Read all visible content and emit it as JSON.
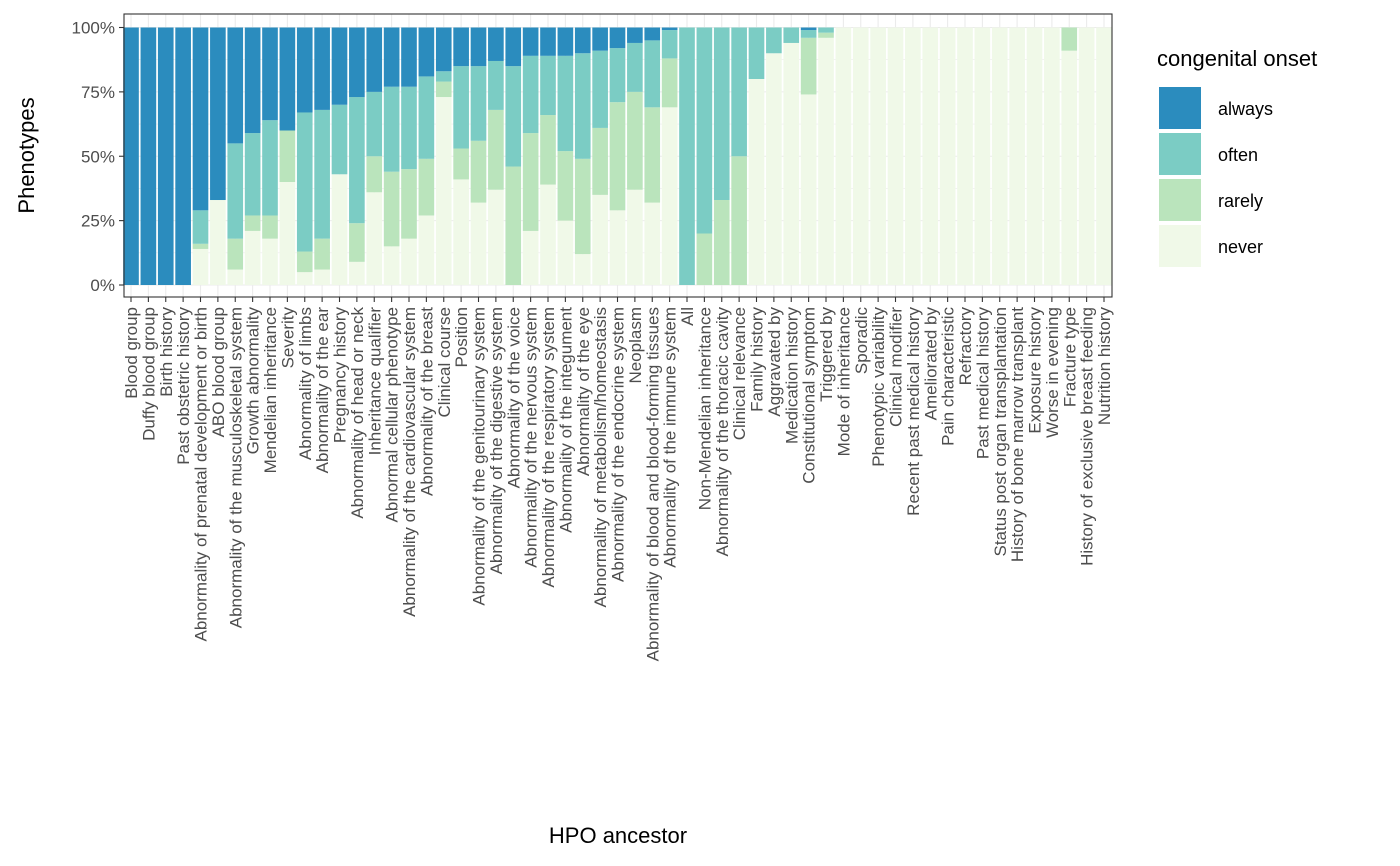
{
  "chart_data": {
    "type": "bar",
    "stacked": true,
    "xlabel": "HPO ancestor",
    "ylabel": "Phenotypes",
    "ylim": [
      0,
      1
    ],
    "y_ticks": [
      0,
      0.25,
      0.5,
      0.75,
      1
    ],
    "y_tick_labels": [
      "0%",
      "25%",
      "50%",
      "75%",
      "100%"
    ],
    "grid": true,
    "legend": {
      "title": "congenital onset",
      "placement": "right"
    },
    "categories": [
      "Blood group",
      "Duffy blood group",
      "Birth history",
      "Past obstetric history",
      "Abnormality of prenatal development or birth",
      "ABO blood group",
      "Abnormality of the musculoskeletal system",
      "Growth abnormality",
      "Mendelian inheritance",
      "Severity",
      "Abnormality of limbs",
      "Abnormality of the ear",
      "Pregnancy history",
      "Abnormality of head or neck",
      "Inheritance qualifier",
      "Abnormal cellular phenotype",
      "Abnormality of the cardiovascular system",
      "Abnormality of the breast",
      "Clinical course",
      "Position",
      "Abnormality of the genitourinary system",
      "Abnormality of the digestive system",
      "Abnormality of the voice",
      "Abnormality of the nervous system",
      "Abnormality of the respiratory system",
      "Abnormality of the integument",
      "Abnormality of the eye",
      "Abnormality of metabolism/homeostasis",
      "Abnormality of the endocrine system",
      "Neoplasm",
      "Abnormality of blood and blood-forming tissues",
      "Abnormality of the immune system",
      "All",
      "Non-Mendelian inheritance",
      "Abnormality of the thoracic cavity",
      "Clinical relevance",
      "Family history",
      "Aggravated by",
      "Medication history",
      "Constitutional symptom",
      "Triggered by",
      "Mode of inheritance",
      "Sporadic",
      "Phenotypic variability",
      "Clinical modifier",
      "Recent past medical history",
      "Ameliorated by",
      "Pain characteristic",
      "Refractory",
      "Past medical history",
      "Status post organ transplantation",
      "History of bone marrow transplant",
      "Exposure history",
      "Worse in evening",
      "Fracture type",
      "History of exclusive breast feeding",
      "Nutrition history"
    ],
    "series": [
      {
        "name": "never",
        "color": "#f0f9e8",
        "values": [
          0,
          0,
          0,
          0,
          0.14,
          0.33,
          0.06,
          0.21,
          0.18,
          0.4,
          0.05,
          0.06,
          0.43,
          0.09,
          0.36,
          0.15,
          0.18,
          0.27,
          0.73,
          0.41,
          0.32,
          0.37,
          0,
          0.21,
          0.39,
          0.25,
          0.12,
          0.35,
          0.29,
          0.37,
          0.32,
          0.69,
          0,
          0,
          0,
          0,
          0.8,
          0.9,
          0.94,
          0.74,
          0.96,
          1,
          1,
          1,
          1,
          1,
          1,
          1,
          1,
          1,
          1,
          1,
          1,
          1,
          0.91,
          1,
          1
        ]
      },
      {
        "name": "rarely",
        "color": "#bae4bc",
        "values": [
          0,
          0,
          0,
          0,
          0.02,
          0,
          0.12,
          0.06,
          0.09,
          0.2,
          0.08,
          0.12,
          0,
          0.15,
          0.14,
          0.29,
          0.27,
          0.22,
          0.06,
          0.12,
          0.24,
          0.31,
          0.46,
          0.38,
          0.27,
          0.27,
          0.37,
          0.26,
          0.42,
          0.38,
          0.37,
          0.19,
          0,
          0.2,
          0.33,
          0.5,
          0,
          0,
          0,
          0.22,
          0.02,
          0,
          0,
          0,
          0,
          0,
          0,
          0,
          0,
          0,
          0,
          0,
          0,
          0,
          0.09,
          0,
          0
        ]
      },
      {
        "name": "often",
        "color": "#7bccc4",
        "values": [
          0,
          0,
          0,
          0,
          0.13,
          0,
          0.37,
          0.32,
          0.37,
          0,
          0.54,
          0.5,
          0.27,
          0.49,
          0.25,
          0.33,
          0.32,
          0.32,
          0.04,
          0.32,
          0.29,
          0.19,
          0.39,
          0.3,
          0.23,
          0.37,
          0.41,
          0.3,
          0.21,
          0.19,
          0.26,
          0.11,
          1,
          0.8,
          0.67,
          0.5,
          0.2,
          0.1,
          0.06,
          0.03,
          0.02,
          0,
          0,
          0,
          0,
          0,
          0,
          0,
          0,
          0,
          0,
          0,
          0,
          0,
          0,
          0,
          0
        ]
      },
      {
        "name": "always",
        "color": "#2b8cbe",
        "values": [
          1,
          1,
          1,
          1,
          0.71,
          0.67,
          0.45,
          0.41,
          0.36,
          0.4,
          0.33,
          0.32,
          0.3,
          0.27,
          0.25,
          0.23,
          0.23,
          0.19,
          0.17,
          0.15,
          0.15,
          0.13,
          0.15,
          0.11,
          0.11,
          0.11,
          0.1,
          0.09,
          0.08,
          0.06,
          0.05,
          0.01,
          0,
          0,
          0,
          0,
          0,
          0,
          0,
          0.01,
          0,
          0,
          0,
          0,
          0,
          0,
          0,
          0,
          0,
          0,
          0,
          0,
          0,
          0,
          0,
          0,
          0
        ]
      }
    ],
    "legend_order": [
      "always",
      "often",
      "rarely",
      "never"
    ]
  },
  "colors": {
    "panel_border": "#333333",
    "grid": "#ebebeb",
    "tick": "#333333"
  }
}
